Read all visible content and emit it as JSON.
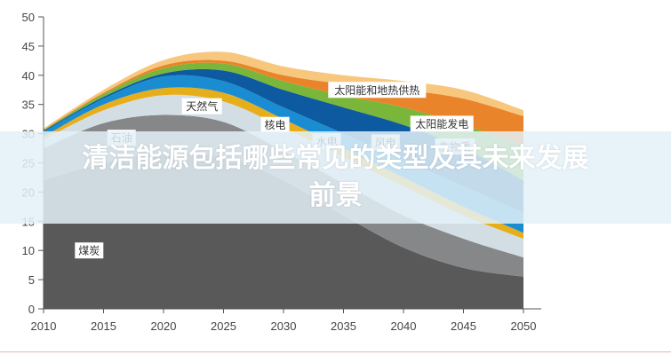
{
  "headline": {
    "line1": "清洁能源包括哪些常见的类型及其未来发展",
    "line2": "前景"
  },
  "chart_data": {
    "type": "area",
    "stacked": true,
    "title": "",
    "xlabel": "",
    "ylabel": "",
    "x": [
      2010,
      2015,
      2020,
      2025,
      2030,
      2035,
      2040,
      2045,
      2050
    ],
    "xlim": [
      2010,
      2050
    ],
    "ylim": [
      0,
      50
    ],
    "xticks": [
      "2010",
      "2015",
      "2020",
      "2025",
      "2030",
      "2035",
      "2040",
      "2045",
      "2050"
    ],
    "yticks": [
      "0",
      "5",
      "10",
      "15",
      "20",
      "25",
      "30",
      "35",
      "40",
      "45",
      "50"
    ],
    "grid": false,
    "legend": "inline-labels",
    "series": [
      {
        "name": "煤炭",
        "color": "#595959",
        "values": [
          22,
          3,
          1.5,
          -0.5,
          -4,
          -6,
          -5.5,
          -3.5,
          -1.5
        ],
        "cumulative": [
          22,
          25,
          26.5,
          26,
          22,
          16,
          10.5,
          7,
          5.5
        ]
      },
      {
        "name": "石油",
        "color": "#858789",
        "cumulative": [
          27.5,
          31.8,
          33.2,
          32,
          27,
          21.5,
          16,
          12,
          8.8
        ]
      },
      {
        "name": "天然气",
        "color": "#d3dde4",
        "cumulative": [
          29,
          34,
          36.6,
          35.5,
          31,
          26,
          21,
          16,
          12
        ]
      },
      {
        "name": "核电",
        "color": "#e7ae1c",
        "cumulative": [
          29.5,
          35,
          37.8,
          37,
          32.5,
          27.5,
          22.5,
          17.5,
          13
        ]
      },
      {
        "name": "水电",
        "color": "#1a8dd2",
        "cumulative": [
          30.3,
          36,
          39.8,
          39,
          34.5,
          30,
          25.5,
          21,
          16.5
        ]
      },
      {
        "name": "风电",
        "color": "#0d5aa0",
        "cumulative": [
          30.5,
          36.3,
          40.3,
          40.8,
          37.5,
          34.5,
          31.5,
          27.5,
          22
        ]
      },
      {
        "name": "生物质",
        "color": "#7ab63a",
        "cumulative": [
          30.6,
          36.8,
          41.2,
          42,
          39,
          36.5,
          34.5,
          31.5,
          28
        ]
      },
      {
        "name": "太阳能发电",
        "color": "#e9842b",
        "cumulative": [
          30.7,
          37,
          41.7,
          42.5,
          40,
          38.5,
          37.5,
          36,
          33
        ]
      },
      {
        "name": "太阳能和地热供热",
        "color": "#f8c77e",
        "cumulative": [
          30.9,
          37.5,
          42.6,
          44,
          41.5,
          40,
          39,
          37.5,
          34
        ]
      }
    ],
    "annotations": [
      {
        "text": "煤炭",
        "x": 2013.8,
        "y": 10
      },
      {
        "text": "石油",
        "x": 2016.5,
        "y": 29.3
      },
      {
        "text": "天然气",
        "x": 2023.2,
        "y": 34.7
      },
      {
        "text": "核电",
        "x": 2029.3,
        "y": 31.5
      },
      {
        "text": "水电",
        "x": 2033.6,
        "y": 28.7
      },
      {
        "text": "风电",
        "x": 2038.5,
        "y": 28.5
      },
      {
        "text": "生物质",
        "x": 2044.3,
        "y": 27.8
      },
      {
        "text": "太阳能发电",
        "x": 2043.2,
        "y": 31.7
      },
      {
        "text": "太阳能和地热供热",
        "x": 2037.8,
        "y": 37.5
      }
    ]
  }
}
